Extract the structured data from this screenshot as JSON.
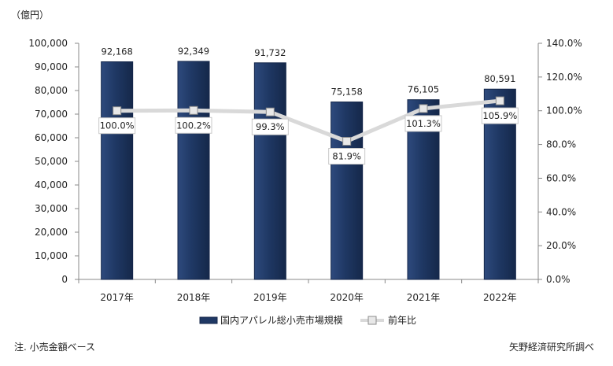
{
  "chart_data": {
    "type": "bar",
    "title": "",
    "unit_label": "（億円）",
    "categories": [
      "2017年",
      "2018年",
      "2019年",
      "2020年",
      "2021年",
      "2022年"
    ],
    "series": [
      {
        "name": "国内アパレル総小売市場規模",
        "type": "bar",
        "axis": "left",
        "values": [
          92168,
          92349,
          91732,
          75158,
          76105,
          80591
        ],
        "labels": [
          "92,168",
          "92,349",
          "91,732",
          "75,158",
          "76,105",
          "80,591"
        ],
        "color": "#1f3864"
      },
      {
        "name": "前年比",
        "type": "line",
        "axis": "right",
        "values": [
          100.0,
          100.2,
          99.3,
          81.9,
          101.3,
          105.9
        ],
        "labels": [
          "100.0%",
          "100.2%",
          "99.3%",
          "81.9%",
          "101.3%",
          "105.9%"
        ],
        "color": "#d9d9d9"
      }
    ],
    "y_left": {
      "min": 0,
      "max": 100000,
      "ticks": [
        "0",
        "10,000",
        "20,000",
        "30,000",
        "40,000",
        "50,000",
        "60,000",
        "70,000",
        "80,000",
        "90,000",
        "100,000"
      ]
    },
    "y_right": {
      "min": 0,
      "max": 140,
      "ticks": [
        "0.0%",
        "20.0%",
        "40.0%",
        "60.0%",
        "80.0%",
        "100.0%",
        "120.0%",
        "140.0%"
      ]
    },
    "grid": false,
    "legend_position": "bottom"
  },
  "footnote": "注. 小売金額ベース",
  "source": "矢野経済研究所調べ"
}
